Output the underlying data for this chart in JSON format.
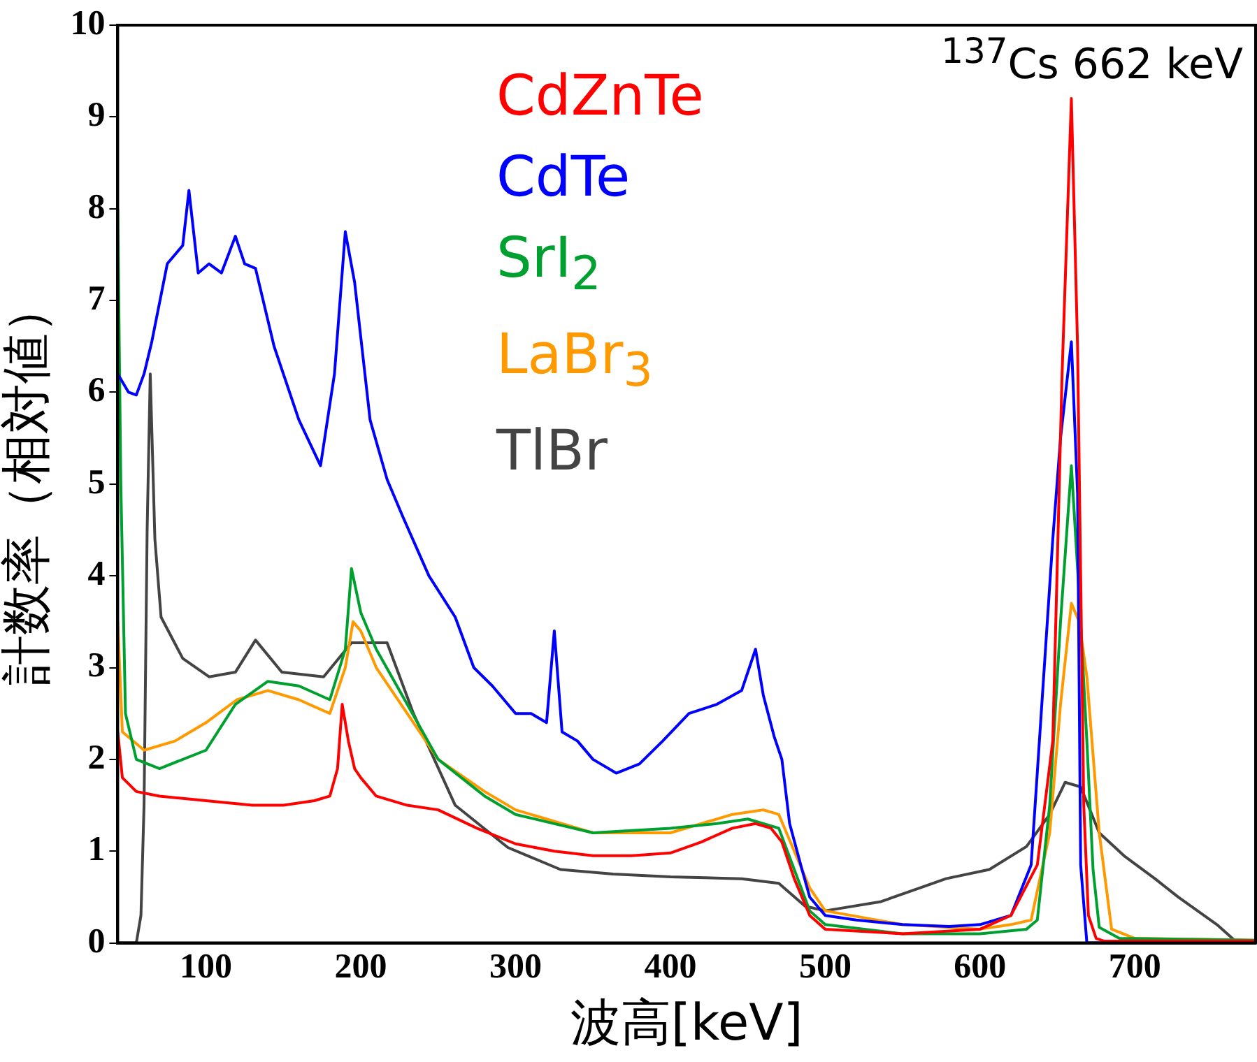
{
  "chart_data": {
    "type": "line",
    "xlabel": "波高[keV]",
    "ylabel": "計数率（相対値）",
    "xlim": [
      43,
      778
    ],
    "ylim": [
      0,
      10
    ],
    "xticks": [
      100,
      200,
      300,
      400,
      500,
      600,
      700
    ],
    "yticks": [
      0,
      1,
      2,
      3,
      4,
      5,
      6,
      7,
      8,
      9,
      10
    ],
    "grid": false,
    "legend": "top",
    "marker": "none",
    "annotations": [
      "$^{137}$Cs 662 keV"
    ],
    "series": [
      {
        "name": "CdZnTe",
        "color": "#ff0000",
        "x": [
          43,
          46,
          55,
          70,
          100,
          130,
          150,
          170,
          180,
          185,
          188,
          192,
          196,
          200,
          210,
          230,
          250,
          275,
          300,
          325,
          350,
          375,
          400,
          420,
          440,
          455,
          465,
          472,
          480,
          490,
          500,
          550,
          600,
          620,
          637,
          647,
          653,
          659,
          663,
          665,
          667,
          670,
          675,
          680,
          700,
          778
        ],
        "values": [
          2.3,
          1.8,
          1.65,
          1.6,
          1.55,
          1.5,
          1.5,
          1.55,
          1.6,
          1.9,
          2.6,
          2.2,
          1.9,
          1.8,
          1.6,
          1.5,
          1.45,
          1.25,
          1.08,
          1.0,
          0.95,
          0.95,
          0.98,
          1.1,
          1.25,
          1.3,
          1.25,
          1.1,
          0.7,
          0.3,
          0.15,
          0.1,
          0.15,
          0.3,
          0.85,
          2.2,
          6.2,
          9.2,
          6.5,
          4.0,
          1.5,
          0.3,
          0.05,
          0.02,
          0.02,
          0.02
        ]
      },
      {
        "name": "CdTe",
        "color": "#0000ff",
        "x": [
          43,
          50,
          55,
          60,
          65,
          75,
          85,
          89,
          95,
          102,
          110,
          119,
          125,
          132,
          144,
          160,
          174,
          183,
          190,
          196,
          206,
          217,
          227,
          244,
          261,
          273,
          285,
          300,
          310,
          320,
          325,
          330,
          340,
          350,
          365,
          380,
          395,
          412,
          430,
          446,
          455,
          460,
          467,
          472,
          477,
          485,
          490,
          500,
          520,
          550,
          580,
          600,
          620,
          633,
          637,
          647,
          652,
          659,
          663,
          665,
          669,
          673,
          700,
          778
        ],
        "values": [
          6.2,
          6.0,
          5.97,
          6.2,
          6.55,
          7.4,
          7.6,
          8.2,
          7.3,
          7.4,
          7.3,
          7.7,
          7.4,
          7.35,
          6.5,
          5.7,
          5.2,
          6.2,
          7.75,
          7.2,
          5.7,
          5.05,
          4.65,
          4.0,
          3.55,
          3.0,
          2.8,
          2.5,
          2.5,
          2.4,
          3.4,
          2.3,
          2.2,
          2.0,
          1.85,
          1.95,
          2.2,
          2.5,
          2.6,
          2.75,
          3.2,
          2.7,
          2.25,
          2.0,
          1.3,
          0.8,
          0.5,
          0.3,
          0.25,
          0.2,
          0.18,
          0.2,
          0.3,
          0.85,
          1.86,
          4.4,
          5.5,
          6.55,
          4.9,
          0.85,
          0,
          0,
          0,
          0
        ]
      },
      {
        "name": "SrI$_{2}$",
        "color": "#00a030",
        "x": [
          43,
          45,
          48,
          55,
          70,
          100,
          119,
          140,
          160,
          180,
          190,
          194,
          200,
          210,
          230,
          250,
          280,
          300,
          350,
          400,
          430,
          450,
          470,
          480,
          490,
          500,
          550,
          600,
          630,
          637,
          645,
          652,
          659,
          664,
          669,
          673,
          677,
          690,
          778
        ],
        "values": [
          8.0,
          5.0,
          2.5,
          2.0,
          1.9,
          2.1,
          2.6,
          2.85,
          2.8,
          2.65,
          3.2,
          4.08,
          3.6,
          3.2,
          2.6,
          2.0,
          1.6,
          1.4,
          1.2,
          1.25,
          1.3,
          1.35,
          1.25,
          0.8,
          0.35,
          0.2,
          0.1,
          0.1,
          0.15,
          0.25,
          1.5,
          3.5,
          5.2,
          3.8,
          2.2,
          0.8,
          0.17,
          0.05,
          0.03
        ]
      },
      {
        "name": "LaBr$_{3}$",
        "color": "#ff9900",
        "x": [
          43,
          46,
          60,
          80,
          100,
          120,
          140,
          160,
          180,
          190,
          195,
          200,
          210,
          230,
          250,
          280,
          300,
          350,
          400,
          440,
          460,
          470,
          480,
          490,
          500,
          550,
          600,
          620,
          633,
          645,
          652,
          659,
          664,
          669,
          677,
          685,
          700,
          778
        ],
        "values": [
          3.5,
          2.3,
          2.1,
          2.2,
          2.4,
          2.65,
          2.75,
          2.65,
          2.5,
          3.0,
          3.5,
          3.4,
          3.0,
          2.5,
          2.0,
          1.65,
          1.45,
          1.2,
          1.2,
          1.4,
          1.45,
          1.4,
          1.0,
          0.6,
          0.35,
          0.2,
          0.15,
          0.2,
          0.25,
          1.2,
          2.6,
          3.7,
          3.5,
          2.9,
          1.2,
          0.15,
          0.05,
          0.03
        ]
      },
      {
        "name": "TlBr",
        "color": "#444444",
        "x": [
          43,
          55,
          58,
          60,
          62,
          64,
          67,
          71,
          85,
          102,
          119,
          132,
          149,
          176,
          194,
          217,
          234,
          261,
          295,
          329,
          363,
          400,
          446,
          470,
          487,
          500,
          536,
          578,
          606,
          630,
          645,
          655,
          665,
          677,
          693,
          713,
          728,
          753,
          765,
          778
        ],
        "values": [
          0,
          0,
          0.3,
          1.5,
          4.5,
          6.2,
          4.4,
          3.55,
          3.1,
          2.9,
          2.95,
          3.3,
          2.95,
          2.9,
          3.27,
          3.27,
          2.5,
          1.5,
          1.04,
          0.8,
          0.75,
          0.72,
          0.7,
          0.65,
          0.4,
          0.35,
          0.45,
          0.7,
          0.8,
          1.05,
          1.4,
          1.75,
          1.7,
          1.2,
          0.95,
          0.7,
          0.5,
          0.2,
          0.02,
          0.02
        ]
      }
    ]
  }
}
